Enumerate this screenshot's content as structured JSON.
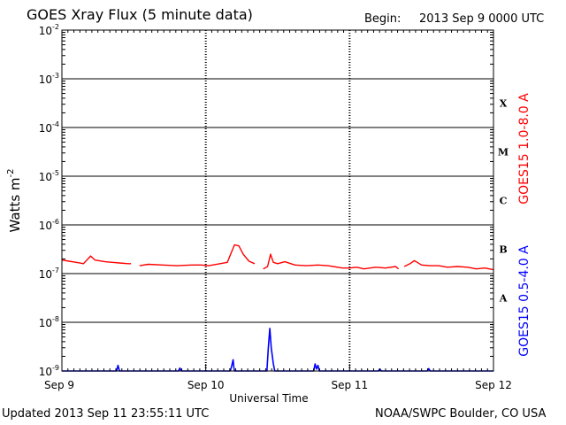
{
  "header": {
    "title": "GOES Xray Flux (5 minute data)",
    "begin_label": "Begin:",
    "begin_value": "2013 Sep 9 0000 UTC"
  },
  "footer": {
    "updated": "Updated 2013 Sep 11 23:55:11 UTC",
    "source": "NOAA/SWPC Boulder, CO USA"
  },
  "chart_data": {
    "type": "line",
    "title": "GOES Xray Flux (5 minute data)",
    "xlabel": "Universal Time",
    "ylabel": "Watts m",
    "ylabel_sup": "-2",
    "yscale": "log",
    "ylim": [
      1e-09,
      0.01
    ],
    "xlim": [
      0,
      3
    ],
    "x_unit": "days since 2013 Sep 9 0000 UTC",
    "x_ticks": [
      {
        "x": 0,
        "label": "Sep 9"
      },
      {
        "x": 1,
        "label": "Sep 10"
      },
      {
        "x": 2,
        "label": "Sep 11"
      },
      {
        "x": 3,
        "label": "Sep 12"
      }
    ],
    "y_ticks": [
      {
        "exp": -2,
        "base": "10",
        "sup": "-2"
      },
      {
        "exp": -3,
        "base": "10",
        "sup": "-3"
      },
      {
        "exp": -4,
        "base": "10",
        "sup": "-4"
      },
      {
        "exp": -5,
        "base": "10",
        "sup": "-5"
      },
      {
        "exp": -6,
        "base": "10",
        "sup": "-6"
      },
      {
        "exp": -7,
        "base": "10",
        "sup": "-7"
      },
      {
        "exp": -8,
        "base": "10",
        "sup": "-8"
      },
      {
        "exp": -9,
        "base": "10",
        "sup": "-9"
      }
    ],
    "flare_classes": [
      {
        "label": "X",
        "exp": -3.5
      },
      {
        "label": "M",
        "exp": -4.5
      },
      {
        "label": "C",
        "exp": -5.5
      },
      {
        "label": "B",
        "exp": -6.5
      },
      {
        "label": "A",
        "exp": -7.5
      }
    ],
    "grid": true,
    "colors": {
      "long": "#ff0000",
      "short": "#0000ff",
      "axes": "#000000"
    },
    "series": [
      {
        "name": "GOES15 1.0-8.0 A",
        "color": "#ff0000",
        "points": [
          [
            0.0,
            1.9e-07
          ],
          [
            0.05,
            1.8e-07
          ],
          [
            0.1,
            1.7e-07
          ],
          [
            0.15,
            1.6e-07
          ],
          [
            0.2,
            2.3e-07
          ],
          [
            0.23,
            1.9e-07
          ],
          [
            0.3,
            1.75e-07
          ],
          [
            0.4,
            1.65e-07
          ],
          [
            0.46,
            1.6e-07
          ],
          [
            0.48,
            1.6e-07
          ],
          null,
          [
            0.54,
            1.45e-07
          ],
          [
            0.6,
            1.55e-07
          ],
          [
            0.7,
            1.5e-07
          ],
          [
            0.8,
            1.45e-07
          ],
          [
            0.9,
            1.5e-07
          ],
          [
            0.97,
            1.5e-07
          ],
          [
            1.02,
            1.45e-07
          ],
          [
            1.1,
            1.6e-07
          ],
          [
            1.15,
            1.7e-07
          ],
          [
            1.18,
            2.8e-07
          ],
          [
            1.2,
            3.9e-07
          ],
          [
            1.23,
            3.7e-07
          ],
          [
            1.26,
            2.5e-07
          ],
          [
            1.3,
            1.8e-07
          ],
          [
            1.34,
            1.6e-07
          ],
          null,
          [
            1.4,
            1.25e-07
          ],
          [
            1.43,
            1.4e-07
          ],
          [
            1.45,
            2.5e-07
          ],
          [
            1.47,
            1.7e-07
          ],
          [
            1.5,
            1.6e-07
          ],
          [
            1.55,
            1.75e-07
          ],
          [
            1.62,
            1.5e-07
          ],
          [
            1.7,
            1.45e-07
          ],
          [
            1.78,
            1.5e-07
          ],
          [
            1.85,
            1.45e-07
          ],
          [
            1.95,
            1.3e-07
          ],
          [
            2.0,
            1.3e-07
          ],
          [
            2.05,
            1.35e-07
          ],
          [
            2.1,
            1.25e-07
          ],
          [
            2.18,
            1.35e-07
          ],
          [
            2.25,
            1.3e-07
          ],
          [
            2.32,
            1.4e-07
          ],
          [
            2.34,
            1.25e-07
          ],
          null,
          [
            2.38,
            1.4e-07
          ],
          [
            2.42,
            1.6e-07
          ],
          [
            2.45,
            1.85e-07
          ],
          [
            2.5,
            1.5e-07
          ],
          [
            2.56,
            1.45e-07
          ],
          [
            2.62,
            1.45e-07
          ],
          [
            2.68,
            1.35e-07
          ],
          [
            2.75,
            1.4e-07
          ],
          [
            2.82,
            1.35e-07
          ],
          [
            2.88,
            1.25e-07
          ],
          [
            2.94,
            1.3e-07
          ],
          [
            3.0,
            1.2e-07
          ]
        ]
      },
      {
        "name": "GOES15 0.5-4.0 A",
        "color": "#0000ff",
        "points": [
          [
            0.0,
            1e-09
          ],
          [
            0.38,
            1e-09
          ],
          [
            0.39,
            1.3e-09
          ],
          [
            0.4,
            1e-09
          ],
          [
            0.6,
            1e-09
          ],
          [
            0.81,
            1e-09
          ],
          [
            0.82,
            1.15e-09
          ],
          [
            0.83,
            1e-09
          ],
          [
            1.17,
            1e-09
          ],
          [
            1.18,
            1.25e-09
          ],
          [
            1.19,
            1.7e-09
          ],
          [
            1.195,
            1.2e-09
          ],
          [
            1.2,
            1e-09
          ],
          [
            1.4,
            1e-09
          ],
          [
            1.425,
            1e-09
          ],
          [
            1.435,
            3e-09
          ],
          [
            1.445,
            7.5e-09
          ],
          [
            1.455,
            3e-09
          ],
          [
            1.47,
            1.4e-09
          ],
          [
            1.48,
            1e-09
          ],
          [
            1.75,
            1e-09
          ],
          [
            1.76,
            1.4e-09
          ],
          [
            1.77,
            1.1e-09
          ],
          [
            1.78,
            1.3e-09
          ],
          [
            1.79,
            1e-09
          ],
          [
            2.2,
            1e-09
          ],
          [
            2.21,
            1.1e-09
          ],
          [
            2.22,
            1e-09
          ],
          [
            2.54,
            1e-09
          ],
          [
            2.55,
            1.12e-09
          ],
          [
            2.56,
            1e-09
          ],
          [
            3.0,
            1e-09
          ]
        ]
      }
    ]
  }
}
